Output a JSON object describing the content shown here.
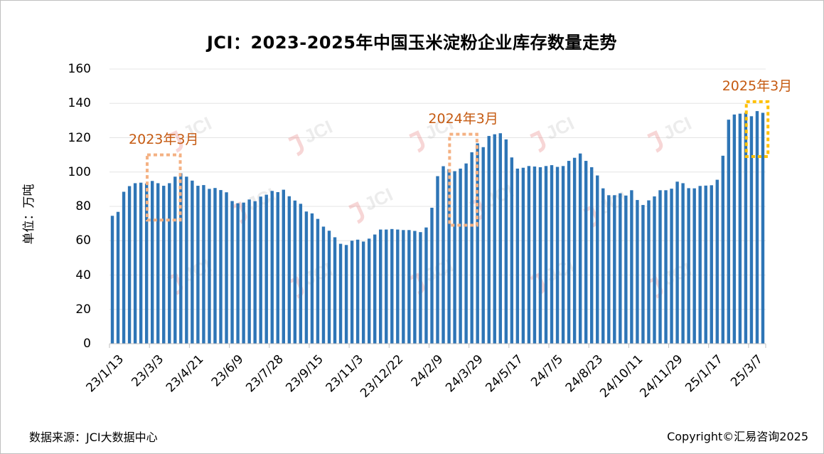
{
  "chart_data": {
    "type": "bar",
    "title": "JCI：2023-2025年中国玉米淀粉企业库存数量走势",
    "ylabel": "单位：万吨",
    "xlabel": "",
    "ylim": [
      0,
      160
    ],
    "yticks": [
      0,
      20,
      40,
      60,
      80,
      100,
      120,
      140,
      160
    ],
    "grid": true,
    "legend": "none",
    "bar_color": "#2e75b6",
    "x_tick_labels": [
      "23/1/13",
      "23/3/3",
      "23/4/21",
      "23/6/9",
      "23/7/28",
      "23/9/15",
      "23/11/3",
      "23/12/22",
      "24/2/9",
      "24/3/29",
      "24/5/17",
      "24/7/5",
      "24/8/23",
      "24/10/11",
      "24/11/29",
      "25/1/17",
      "25/3/7"
    ],
    "categories": [
      "23/1/13",
      "23/1/20",
      "23/1/27",
      "23/2/3",
      "23/2/10",
      "23/2/17",
      "23/2/24",
      "23/3/3",
      "23/3/10",
      "23/3/17",
      "23/3/24",
      "23/3/31",
      "23/4/7",
      "23/4/14",
      "23/4/21",
      "23/4/28",
      "23/5/5",
      "23/5/12",
      "23/5/19",
      "23/5/26",
      "23/6/2",
      "23/6/9",
      "23/6/16",
      "23/6/23",
      "23/6/30",
      "23/7/7",
      "23/7/14",
      "23/7/21",
      "23/7/28",
      "23/8/4",
      "23/8/11",
      "23/8/18",
      "23/8/25",
      "23/9/1",
      "23/9/8",
      "23/9/15",
      "23/9/22",
      "23/9/29",
      "23/10/6",
      "23/10/13",
      "23/10/20",
      "23/10/27",
      "23/11/3",
      "23/11/10",
      "23/11/17",
      "23/11/24",
      "23/12/1",
      "23/12/8",
      "23/12/15",
      "23/12/22",
      "23/12/29",
      "24/1/5",
      "24/1/12",
      "24/1/19",
      "24/1/26",
      "24/2/2",
      "24/2/9",
      "24/2/16",
      "24/2/23",
      "24/3/1",
      "24/3/8",
      "24/3/15",
      "24/3/22",
      "24/3/29",
      "24/4/5",
      "24/4/12",
      "24/4/19",
      "24/4/26",
      "24/5/3",
      "24/5/10",
      "24/5/17",
      "24/5/24",
      "24/5/31",
      "24/6/7",
      "24/6/14",
      "24/6/21",
      "24/6/28",
      "24/7/5",
      "24/7/12",
      "24/7/19",
      "24/7/26",
      "24/8/2",
      "24/8/9",
      "24/8/16",
      "24/8/23",
      "24/8/30",
      "24/9/6",
      "24/9/13",
      "24/9/20",
      "24/9/27",
      "24/10/4",
      "24/10/11",
      "24/10/18",
      "24/10/25",
      "24/11/1",
      "24/11/8",
      "24/11/15",
      "24/11/22",
      "24/11/29",
      "24/12/6",
      "24/12/13",
      "24/12/20",
      "24/12/27",
      "25/1/3",
      "25/1/10",
      "25/1/17",
      "25/1/24",
      "25/1/31",
      "25/2/7",
      "25/2/14",
      "25/2/21",
      "25/2/28",
      "25/3/7",
      "25/3/14",
      "25/3/21"
    ],
    "values": [
      74.5,
      76.8,
      88.5,
      91.8,
      93.5,
      93.8,
      93.3,
      94.8,
      93.5,
      92.0,
      93.5,
      97.3,
      99.3,
      97.3,
      95.0,
      92.0,
      92.4,
      90.2,
      90.7,
      89.5,
      88.2,
      83.1,
      81.8,
      82.2,
      84.0,
      83.0,
      85.7,
      86.8,
      89.0,
      88.3,
      89.7,
      85.9,
      83.4,
      81.5,
      77.0,
      75.9,
      72.7,
      68.2,
      65.8,
      62.0,
      58.2,
      57.5,
      60.0,
      60.6,
      59.5,
      61.2,
      63.6,
      66.5,
      66.5,
      66.8,
      66.5,
      66.2,
      66.2,
      65.7,
      65.0,
      67.7,
      79.2,
      97.6,
      103.4,
      101.7,
      100.5,
      102.0,
      105.0,
      111.5,
      116.7,
      114.5,
      121.0,
      122.0,
      122.6,
      119.0,
      108.5,
      102.0,
      102.5,
      103.5,
      103.2,
      102.8,
      103.5,
      104.0,
      103.0,
      103.5,
      106.5,
      108.3,
      110.8,
      106.5,
      102.8,
      98.0,
      90.5,
      86.5,
      86.5,
      87.6,
      86.3,
      89.4,
      83.7,
      80.8,
      83.5,
      85.8,
      89.4,
      89.4,
      90.3,
      94.4,
      93.5,
      90.6,
      90.5,
      91.9,
      92.1,
      92.3,
      95.5,
      109.5,
      130.5,
      133.5,
      134.0,
      134.5,
      132.5,
      135.5,
      134.5
    ]
  },
  "annotations": [
    {
      "label": "2023年3月",
      "box_color": "#f4b183",
      "from": "23/3/3",
      "to": "23/3/31",
      "range": [
        72,
        110
      ]
    },
    {
      "label": "2024年3月",
      "box_color": "#f4b183",
      "from": "24/3/8",
      "to": "24/3/29",
      "range": [
        69,
        122
      ]
    },
    {
      "label": "2025年3月",
      "box_color": "#ffc000",
      "from": "25/3/7",
      "to": "25/3/21",
      "range": [
        109,
        141
      ]
    }
  ],
  "watermark": "JCI",
  "footer": {
    "source": "数据来源：JCI大数据中心",
    "copyright": "Copyright©汇易咨询2025"
  }
}
